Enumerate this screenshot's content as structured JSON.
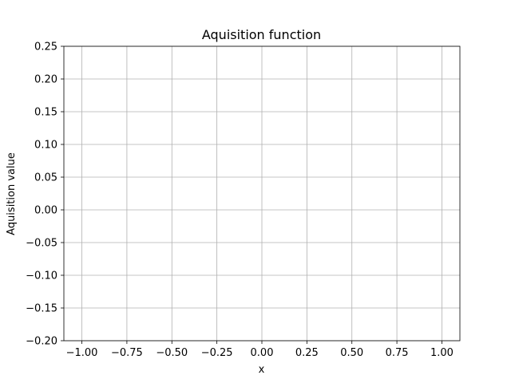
{
  "chart_data": {
    "type": "line",
    "title": "Aquisition function",
    "xlabel": "x",
    "ylabel": "Aquisition value",
    "xlim": [
      -1.1,
      1.1
    ],
    "ylim": [
      -0.2,
      0.25
    ],
    "x_ticks": [
      -1.0,
      -0.75,
      -0.5,
      -0.25,
      0.0,
      0.25,
      0.5,
      0.75,
      1.0
    ],
    "x_tick_labels": [
      "−1.00",
      "−0.75",
      "−0.50",
      "−0.25",
      "0.00",
      "0.25",
      "0.50",
      "0.75",
      "1.00"
    ],
    "y_ticks": [
      -0.2,
      -0.15,
      -0.1,
      -0.05,
      0.0,
      0.05,
      0.1,
      0.15,
      0.2,
      0.25
    ],
    "y_tick_labels": [
      "−0.20",
      "−0.15",
      "−0.10",
      "−0.05",
      "0.00",
      "0.05",
      "0.10",
      "0.15",
      "0.20",
      "0.25"
    ],
    "grid": true,
    "series": []
  }
}
